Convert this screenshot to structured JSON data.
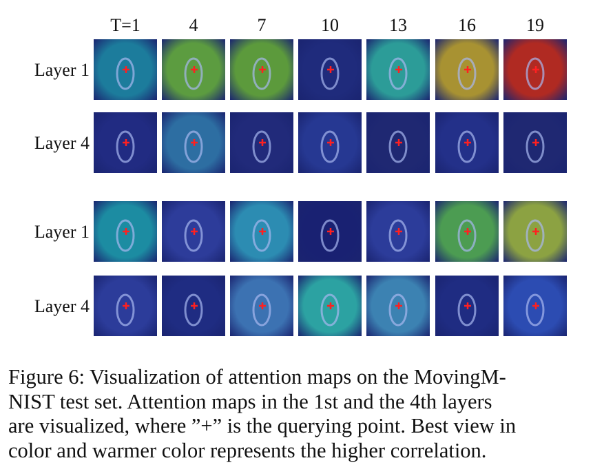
{
  "figure": {
    "columns": [
      "T=1",
      "4",
      "7",
      "10",
      "13",
      "16",
      "19"
    ],
    "rows": [
      "Layer 1",
      "Layer 4",
      "Layer 1",
      "Layer 4"
    ],
    "caption": [
      "Figure 6: Visualization of attention maps on the MovingM-",
      "NIST test set. Attention maps in the 1st and the 4th layers",
      "are visualized, where ”+” is the querying point. Best view in",
      "color and warmer color represents the higher correlation."
    ]
  }
}
